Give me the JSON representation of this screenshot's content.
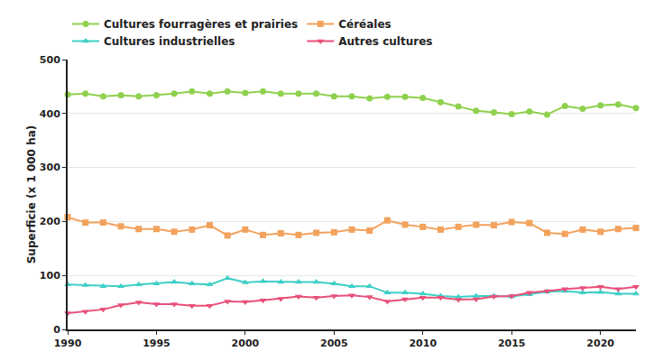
{
  "chart_data": {
    "type": "line",
    "y_label": "Superficie (x 1 000 ha)",
    "x": [
      1990,
      1991,
      1992,
      1993,
      1994,
      1995,
      1996,
      1997,
      1998,
      1999,
      2000,
      2001,
      2002,
      2003,
      2004,
      2005,
      2006,
      2007,
      2008,
      2009,
      2010,
      2011,
      2012,
      2013,
      2014,
      2015,
      2016,
      2017,
      2018,
      2019,
      2020,
      2021,
      2022
    ],
    "series": [
      {
        "name": "Cultures fourragères et prairies",
        "color": "#8fd14f",
        "marker": "circle",
        "values": [
          435,
          437,
          432,
          434,
          432,
          434,
          437,
          441,
          437,
          441,
          438,
          441,
          437,
          437,
          437,
          432,
          432,
          428,
          431,
          431,
          429,
          421,
          413,
          405,
          402,
          399,
          404,
          398,
          414,
          409,
          415,
          417,
          410
        ]
      },
      {
        "name": "Céréales",
        "color": "#f2a25c",
        "marker": "square",
        "values": [
          208,
          198,
          198,
          191,
          186,
          186,
          181,
          185,
          193,
          174,
          185,
          175,
          178,
          175,
          179,
          180,
          185,
          183,
          202,
          194,
          190,
          185,
          190,
          194,
          193,
          199,
          197,
          179,
          177,
          185,
          181,
          186,
          188
        ]
      },
      {
        "name": "Cultures industrielles",
        "color": "#3fcfc6",
        "marker": "triangle-up",
        "values": [
          83,
          82,
          80,
          80,
          83,
          85,
          88,
          85,
          83,
          95,
          87,
          89,
          88,
          88,
          88,
          85,
          80,
          80,
          68,
          68,
          66,
          62,
          60,
          62,
          62,
          61,
          65,
          70,
          71,
          68,
          69,
          66,
          66
        ]
      },
      {
        "name": "Autres cultures",
        "color": "#e8507a",
        "marker": "triangle-down",
        "values": [
          30,
          33,
          37,
          45,
          50,
          47,
          47,
          44,
          44,
          52,
          51,
          54,
          57,
          61,
          59,
          62,
          63,
          60,
          52,
          56,
          59,
          59,
          55,
          56,
          61,
          62,
          68,
          71,
          75,
          77,
          79,
          75,
          79
        ]
      }
    ],
    "xlim": [
      1990,
      2022
    ],
    "xticks": [
      1990,
      1995,
      2000,
      2005,
      2010,
      2015,
      2020
    ],
    "ylim": [
      0,
      500
    ],
    "yticks": [
      0,
      100,
      200,
      300,
      400,
      500
    ],
    "grid": true,
    "legend": "top"
  }
}
